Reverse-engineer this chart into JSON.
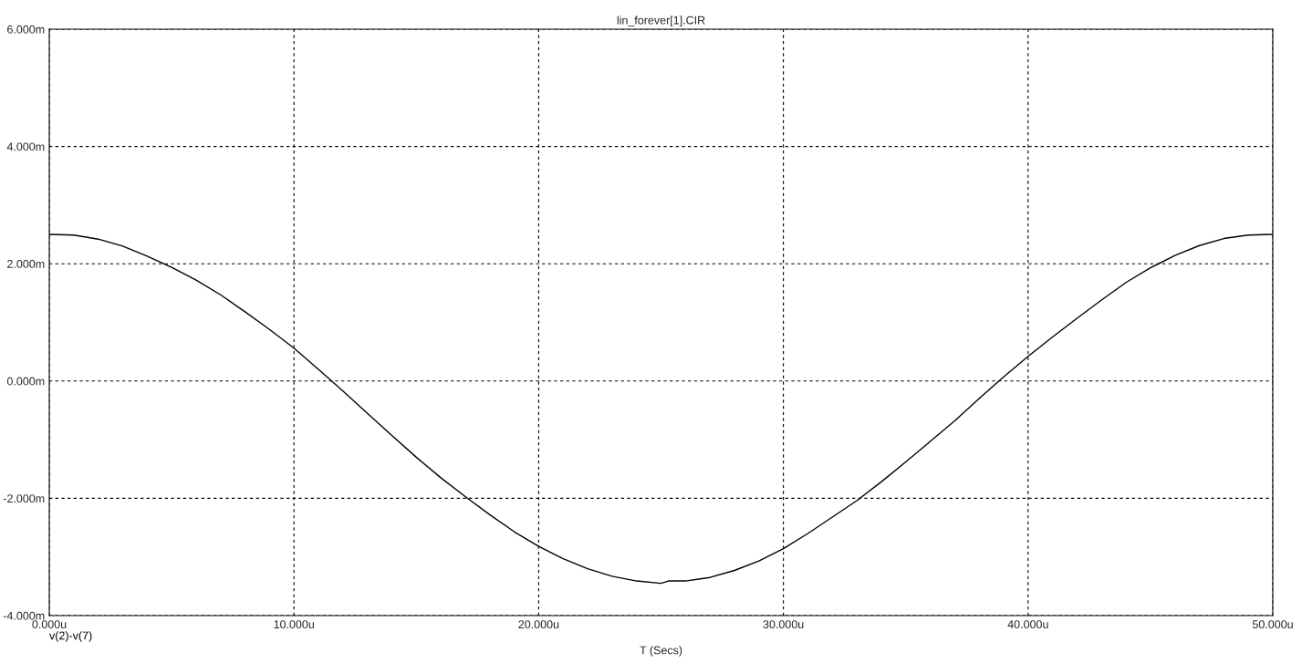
{
  "chart_data": {
    "type": "line",
    "title": "lin_forever[1].CIR",
    "xlabel": "T (Secs)",
    "grid": true,
    "line_style": "solid",
    "marker": "none",
    "xlim": [
      0,
      50
    ],
    "ylim": [
      -4,
      6
    ],
    "xticks": [
      {
        "value": 0,
        "label": "0.000u"
      },
      {
        "value": 10,
        "label": "10.000u"
      },
      {
        "value": 20,
        "label": "20.000u"
      },
      {
        "value": 30,
        "label": "30.000u"
      },
      {
        "value": 40,
        "label": "40.000u"
      },
      {
        "value": 50,
        "label": "50.000u"
      }
    ],
    "yticks": [
      {
        "value": -4,
        "label": "-4.000m"
      },
      {
        "value": -2,
        "label": "-2.000m"
      },
      {
        "value": 0,
        "label": "0.000m"
      },
      {
        "value": 2,
        "label": "2.000m"
      },
      {
        "value": 4,
        "label": "4.000m"
      },
      {
        "value": 6,
        "label": "6.000m"
      }
    ],
    "series": [
      {
        "name": "v(2)-v(7)",
        "color": "#000000",
        "x": [
          0,
          1,
          2,
          3,
          4,
          5,
          6,
          7,
          8,
          9,
          10,
          11,
          12,
          13,
          14,
          15,
          16,
          17,
          18,
          19,
          20,
          21,
          22,
          23,
          24,
          25,
          25.3,
          26,
          27,
          28,
          29,
          30,
          31,
          32,
          33,
          34,
          35,
          36,
          37,
          38,
          39,
          40,
          41,
          42,
          43,
          44,
          45,
          46,
          47,
          48,
          49,
          50
        ],
        "values": [
          2.5,
          2.49,
          2.42,
          2.3,
          2.13,
          1.94,
          1.72,
          1.47,
          1.18,
          0.88,
          0.56,
          0.2,
          -0.17,
          -0.55,
          -0.93,
          -1.3,
          -1.65,
          -1.97,
          -2.28,
          -2.57,
          -2.82,
          -3.03,
          -3.2,
          -3.33,
          -3.41,
          -3.45,
          -3.41,
          -3.41,
          -3.35,
          -3.23,
          -3.07,
          -2.86,
          -2.6,
          -2.32,
          -2.04,
          -1.72,
          -1.38,
          -1.03,
          -0.68,
          -0.3,
          0.07,
          0.42,
          0.75,
          1.07,
          1.38,
          1.68,
          1.93,
          2.14,
          2.31,
          2.43,
          2.49,
          2.5
        ]
      }
    ]
  }
}
